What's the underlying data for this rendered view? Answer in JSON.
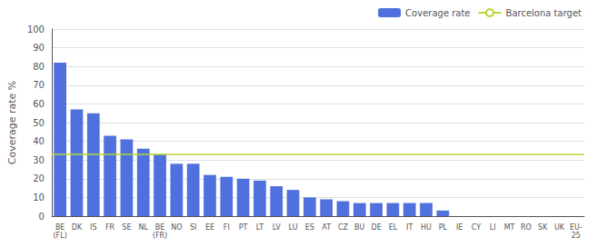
{
  "chart_data": {
    "type": "bar",
    "categories": [
      "BE\n(FL)",
      "DK",
      "IS",
      "FR",
      "SE",
      "NL",
      "BE\n(FR)",
      "NO",
      "SI",
      "EE",
      "FI",
      "PT",
      "LT",
      "LV",
      "LU",
      "ES",
      "AT",
      "CZ",
      "BU",
      "DE",
      "EL",
      "IT",
      "HU",
      "PL",
      "IE",
      "CY",
      "LI",
      "MT",
      "RO",
      "SK",
      "UK",
      "EU-\n25"
    ],
    "series": [
      {
        "name": "Coverage rate",
        "values": [
          82,
          57,
          55,
          43,
          41,
          36,
          33,
          28,
          28,
          22,
          21,
          20,
          19,
          16,
          14,
          10,
          9,
          8,
          7,
          7,
          7,
          7,
          7,
          3,
          0,
          0,
          0,
          0,
          0,
          0,
          0,
          0
        ]
      }
    ],
    "target_line": {
      "name": "Barcelona target",
      "value": 33
    },
    "ylabel": "Coverage rate %",
    "ylim": [
      0,
      100
    ],
    "yticks": [
      0,
      10,
      20,
      30,
      40,
      50,
      60,
      70,
      80,
      90,
      100
    ],
    "grid": true,
    "legend": "upper right"
  }
}
